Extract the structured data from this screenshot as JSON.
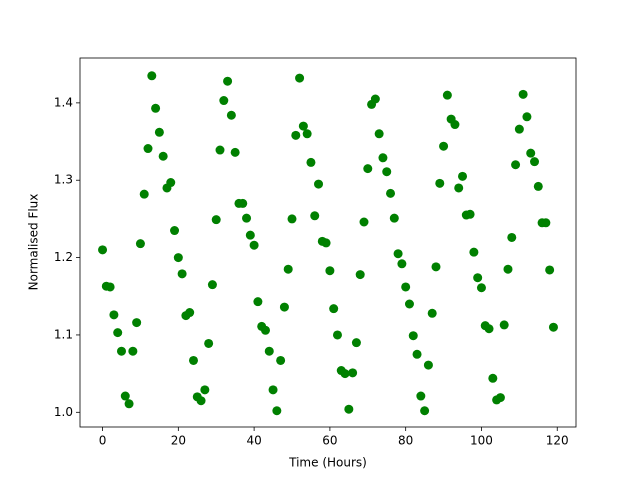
{
  "chart_data": {
    "type": "scatter",
    "x_label": "Time (Hours)",
    "y_label": "Normalised Flux",
    "color": "#008000",
    "grid": false,
    "xlim": [
      -5.95,
      124.95
    ],
    "ylim": [
      0.981,
      1.458
    ],
    "xticks": [
      0,
      20,
      40,
      60,
      80,
      100,
      120
    ],
    "yticks": [
      {
        "value": 1,
        "label": "1.0"
      },
      {
        "value": 1.1,
        "label": "1.1"
      },
      {
        "value": 1.2,
        "label": "1.2"
      },
      {
        "value": 1.3,
        "label": "1.3"
      },
      {
        "value": 1.4,
        "label": "1.4"
      }
    ],
    "x": [
      0,
      1,
      2,
      3,
      4,
      5,
      6,
      7,
      8,
      9,
      10,
      11,
      12,
      13,
      14,
      15,
      16,
      17,
      18,
      19,
      20,
      21,
      22,
      23,
      24,
      25,
      26,
      27,
      28,
      29,
      30,
      31,
      32,
      33,
      34,
      35,
      36,
      37,
      38,
      39,
      40,
      41,
      42,
      43,
      44,
      45,
      46,
      47,
      48,
      49,
      50,
      51,
      52,
      53,
      54,
      55,
      56,
      57,
      58,
      59,
      60,
      61,
      62,
      63,
      64,
      65,
      66,
      67,
      68,
      69,
      70,
      71,
      72,
      73,
      74,
      75,
      76,
      77,
      78,
      79,
      80,
      81,
      82,
      83,
      84,
      85,
      86,
      87,
      88,
      89,
      90,
      91,
      92,
      93,
      94,
      95,
      96,
      97,
      98,
      99,
      100,
      101,
      102,
      103,
      104,
      105,
      106,
      107,
      108,
      109,
      110,
      111,
      112,
      113,
      114,
      115,
      116,
      117,
      118,
      119
    ],
    "values": [
      1.21,
      1.163,
      1.162,
      1.126,
      1.103,
      1.079,
      1.021,
      1.011,
      1.079,
      1.116,
      1.218,
      1.282,
      1.341,
      1.435,
      1.393,
      1.362,
      1.331,
      1.29,
      1.297,
      1.235,
      1.2,
      1.179,
      1.125,
      1.129,
      1.067,
      1.02,
      1.015,
      1.029,
      1.089,
      1.165,
      1.249,
      1.339,
      1.403,
      1.428,
      1.384,
      1.336,
      1.27,
      1.27,
      1.251,
      1.229,
      1.216,
      1.143,
      1.111,
      1.106,
      1.079,
      1.029,
      1.002,
      1.067,
      1.136,
      1.185,
      1.25,
      1.358,
      1.432,
      1.37,
      1.36,
      1.323,
      1.254,
      1.295,
      1.221,
      1.219,
      1.183,
      1.134,
      1.1,
      1.054,
      1.05,
      1.004,
      1.051,
      1.09,
      1.178,
      1.246,
      1.315,
      1.398,
      1.405,
      1.36,
      1.329,
      1.311,
      1.283,
      1.251,
      1.205,
      1.192,
      1.162,
      1.14,
      1.099,
      1.075,
      1.021,
      1.002,
      1.061,
      1.128,
      1.188,
      1.296,
      1.344,
      1.41,
      1.379,
      1.372,
      1.29,
      1.305,
      1.255,
      1.256,
      1.207,
      1.174,
      1.161,
      1.112,
      1.108,
      1.044,
      1.016,
      1.019,
      1.113,
      1.185,
      1.226,
      1.32,
      1.366,
      1.411,
      1.382,
      1.335,
      1.324,
      1.292,
      1.245,
      1.245,
      1.184,
      1.11
    ]
  }
}
